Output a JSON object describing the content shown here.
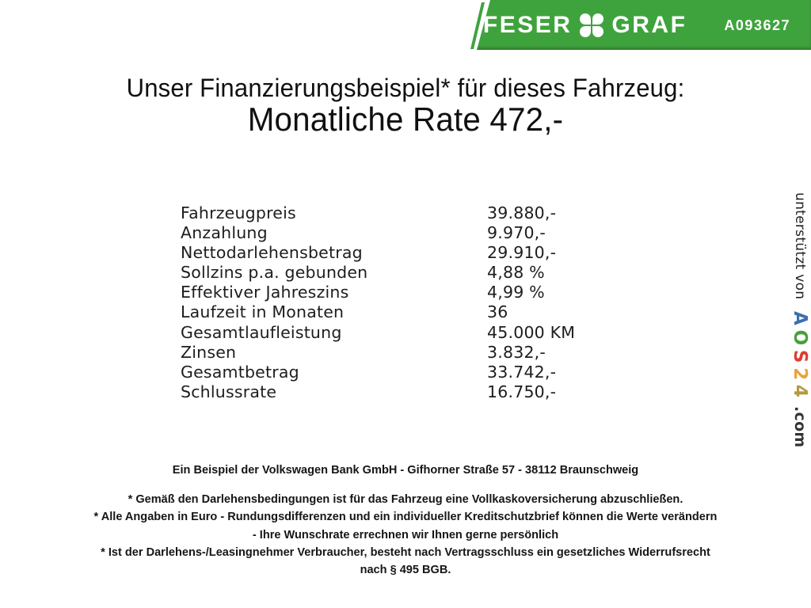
{
  "header_banner": {
    "brand_first": "FESER",
    "brand_second": "GRAF",
    "vehicle_id": "A093627",
    "banner_color": "#3fa33d",
    "text_color": "#ffffff",
    "clover_icon": "four-leaf-clover"
  },
  "title": {
    "line1": "Unser Finanzierungsbeispiel* für dieses Fahrzeug:",
    "line2": "Monatliche Rate 472,-"
  },
  "financing": {
    "rows": [
      {
        "label": "Fahrzeugpreis",
        "value": "39.880,-"
      },
      {
        "label": "Anzahlung",
        "value": "9.970,-"
      },
      {
        "label": "Nettodarlehensbetrag",
        "value": "29.910,-"
      },
      {
        "label": "Sollzins p.a. gebunden",
        "value": "4,88 %"
      },
      {
        "label": "Effektiver Jahreszins",
        "value": "4,99 %"
      },
      {
        "label": "Laufzeit in Monaten",
        "value": "36"
      },
      {
        "label": "Gesamtlaufleistung",
        "value": "45.000 KM"
      },
      {
        "label": "Zinsen",
        "value": "3.832,-"
      },
      {
        "label": "Gesamtbetrag",
        "value": "33.742,-"
      },
      {
        "label": "Schlussrate",
        "value": "16.750,-"
      }
    ]
  },
  "side_credit": {
    "prefix": "unterstützt von",
    "logo_letters": [
      {
        "char": "A",
        "color": "#3e6fb0"
      },
      {
        "char": "O",
        "color": "#48a03c"
      },
      {
        "char": "S",
        "color": "#df3b30"
      },
      {
        "char": "2",
        "color": "#e8a33a"
      },
      {
        "char": "4",
        "color": "#b59a3e"
      }
    ],
    "logo_suffix": ".com",
    "suffix_color": "#333333"
  },
  "footer": {
    "bank_line": "Ein Beispiel der Volkswagen Bank GmbH - Gifhorner Straße 57 - 38112 Braunschweig",
    "disclaimer_lines": [
      "* Gemäß den Darlehensbedingungen ist für das Fahrzeug eine Vollkaskoversicherung abzuschließen.",
      "* Alle Angaben in Euro - Rundungsdifferenzen und ein individueller Kreditschutzbrief können die Werte verändern",
      "- Ihre Wunschrate errechnen wir Ihnen gerne persönlich",
      "* Ist der Darlehens-/Leasingnehmer Verbraucher, besteht nach Vertragsschluss ein gesetzliches Widerrufsrecht",
      "nach § 495 BGB."
    ]
  }
}
